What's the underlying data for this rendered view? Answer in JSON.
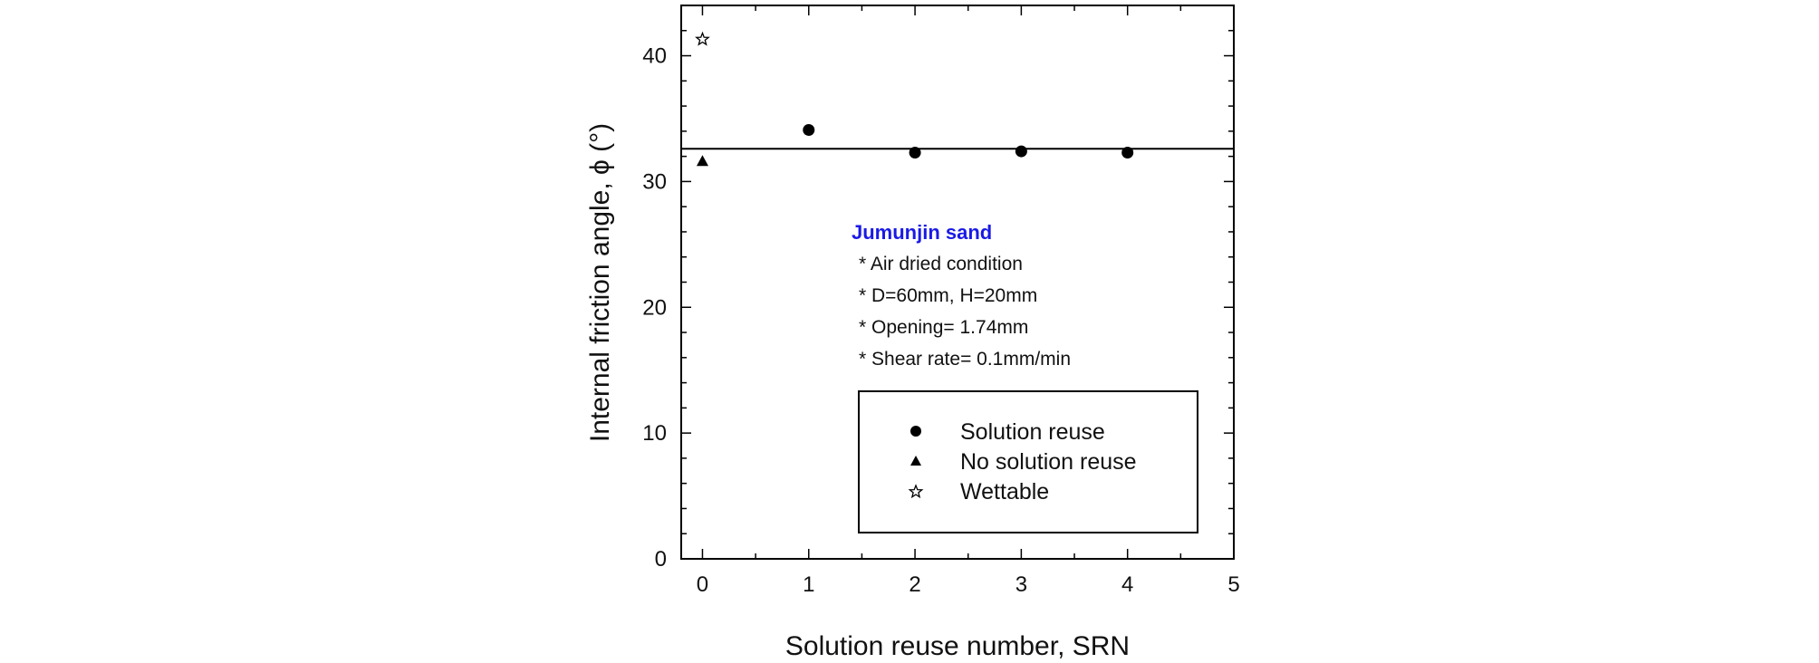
{
  "chart_data": {
    "type": "scatter",
    "xlabel": "Solution reuse number, SRN",
    "ylabel": "Internal friction angle, ϕ (°)",
    "xlim": [
      -0.2,
      5
    ],
    "ylim": [
      0,
      44
    ],
    "xticks": [
      0,
      1,
      2,
      3,
      4,
      5
    ],
    "yticks": [
      0,
      10,
      20,
      30,
      40
    ],
    "grid": false,
    "series": [
      {
        "name": "Solution reuse",
        "marker": "circle",
        "color": "#000000",
        "x": [
          1,
          2,
          3,
          4
        ],
        "y": [
          34.1,
          32.3,
          32.4,
          32.3
        ]
      },
      {
        "name": "No solution reuse",
        "marker": "triangle",
        "color": "#000000",
        "x": [
          0
        ],
        "y": [
          31.6
        ]
      },
      {
        "name": "Wettable",
        "marker": "star",
        "color": "#000000",
        "x": [
          0
        ],
        "y": [
          41.3
        ]
      }
    ],
    "reference_line": {
      "y": 32.6
    },
    "annotation": {
      "title": "Jumunjin sand",
      "title_color": "#1a1ae6",
      "lines": [
        "* Air dried condition",
        "* D=60mm, H=20mm",
        "* Opening= 1.74mm",
        "* Shear rate= 0.1mm/min"
      ]
    },
    "legend_position": "bottom-right"
  }
}
